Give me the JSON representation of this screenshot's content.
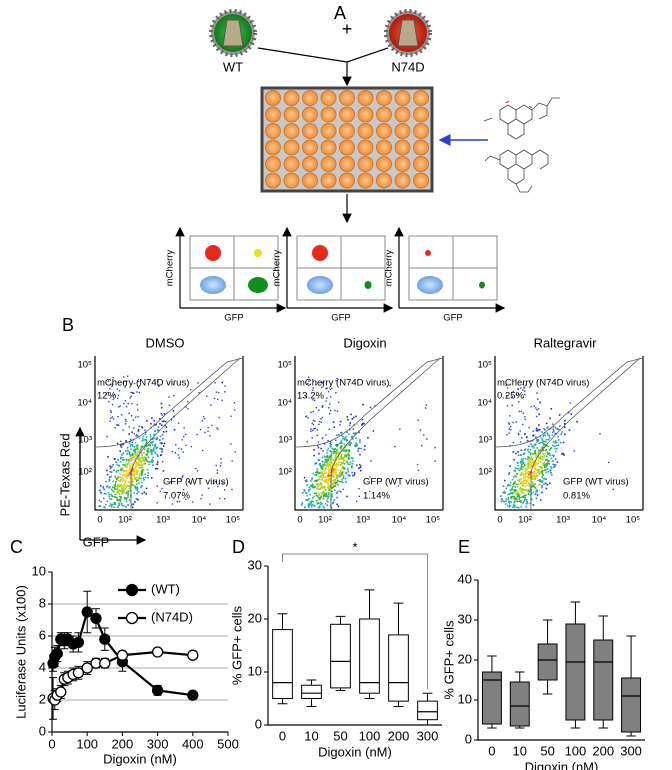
{
  "panels": {
    "a": {
      "label": "A",
      "plus": "+",
      "viruses": [
        {
          "label": "WT"
        },
        {
          "label": "N74D"
        }
      ],
      "plots": [
        {
          "ylabel": "mCherry",
          "xlabel": "GFP"
        },
        {
          "ylabel": "mCherry",
          "xlabel": "GFP"
        },
        {
          "ylabel": "mCherry",
          "xlabel": "GFP"
        }
      ]
    },
    "b": {
      "label": "B",
      "ylabel": "PE-Texas Red",
      "xlabel": "GFP",
      "yticks": [
        "10⁵",
        "10⁴",
        "10³",
        "10²"
      ],
      "xticks": [
        "0",
        "10²",
        "10³",
        "10⁴",
        "10⁵"
      ],
      "plots": [
        {
          "title": "DMSO",
          "upper_gate": "mCherry (N74D virus)",
          "upper_pct": "12%",
          "lower_gate": "GFP (WT virus)",
          "lower_pct": "7.07%"
        },
        {
          "title": "Digoxin",
          "upper_gate": "mCherry (N74D virus)",
          "upper_pct": "13.2%",
          "lower_gate": "GFP (WT virus)",
          "lower_pct": "1.14%"
        },
        {
          "title": "Raltegravir",
          "upper_gate": "mCherry (N74D virus)",
          "upper_pct": "0.25%",
          "lower_gate": "GFP (WT virus)",
          "lower_pct": "0.81%"
        }
      ]
    }
  },
  "chart_data": [
    {
      "type": "line",
      "label": "C",
      "xlabel": "Digoxin (nM)",
      "ylabel": "Luciferase Units (x100)",
      "xlim": [
        0,
        500
      ],
      "xticks": [
        0,
        100,
        200,
        300,
        400,
        500
      ],
      "ylim": [
        0,
        10
      ],
      "yticks": [
        0,
        2,
        4,
        6,
        8,
        10
      ],
      "grid": true,
      "legend": "upper right",
      "x": [
        3,
        8,
        15,
        25,
        35,
        45,
        60,
        75,
        100,
        125,
        150,
        200,
        300,
        400
      ],
      "series": [
        {
          "name": "(WT)",
          "color": "#000000",
          "fill": "#000000",
          "values": [
            4.3,
            4.7,
            4.9,
            5.8,
            5.7,
            5.8,
            5.5,
            5.6,
            7.5,
            7.1,
            5.8,
            4.4,
            2.6,
            2.3
          ],
          "errors": [
            0.5,
            0.6,
            0.5,
            0.4,
            0.5,
            0.4,
            0.5,
            0.6,
            1.3,
            0.6,
            0.7,
            0.6,
            0.3,
            0.2
          ]
        },
        {
          "name": "(N74D)",
          "color": "#000000",
          "fill": "#ffffff",
          "values": [
            2.1,
            2.0,
            2.3,
            2.5,
            3.3,
            3.4,
            3.6,
            3.7,
            4.0,
            4.3,
            4.3,
            4.8,
            5.0,
            4.8
          ],
          "errors": [
            1.3,
            0.6,
            0.4,
            0.4,
            0.4,
            0.4,
            0.4,
            0.4,
            0.4,
            0.3,
            0.3,
            0.2,
            0.2,
            0.2
          ]
        }
      ]
    },
    {
      "type": "box",
      "label": "D",
      "xlabel": "Digoxin (nM)",
      "ylabel": "% GFP+ cells",
      "color": "#ffffff",
      "annotation": "*",
      "categories": [
        "0",
        "10",
        "50",
        "100",
        "200",
        "300"
      ],
      "ylim": [
        0,
        30
      ],
      "yticks": [
        0,
        10,
        20,
        30
      ],
      "min": [
        4,
        3.5,
        6.5,
        5,
        3.5,
        0
      ],
      "q1": [
        5,
        5,
        7,
        6,
        4.5,
        1
      ],
      "median": [
        8,
        6,
        12,
        8,
        8,
        2.5
      ],
      "q3": [
        18,
        7.5,
        19,
        20,
        17,
        4.5
      ],
      "max": [
        21,
        8.5,
        20.5,
        25.5,
        23,
        6
      ]
    },
    {
      "type": "box",
      "label": "E",
      "xlabel": "Digoxin (nM)",
      "ylabel": "% GFP+ cells",
      "color": "#808080",
      "categories": [
        "0",
        "10",
        "50",
        "100",
        "200",
        "300"
      ],
      "ylim": [
        0,
        40
      ],
      "yticks": [
        0,
        10,
        20,
        30,
        40
      ],
      "min": [
        3,
        3,
        11.5,
        3,
        3,
        1
      ],
      "q1": [
        4,
        3.5,
        15,
        5,
        5,
        2
      ],
      "median": [
        15,
        8.5,
        20,
        19.5,
        19.5,
        11
      ],
      "q3": [
        17,
        14.5,
        24,
        29,
        25,
        15.5
      ],
      "max": [
        21,
        17,
        30,
        34.5,
        31,
        26
      ]
    }
  ]
}
